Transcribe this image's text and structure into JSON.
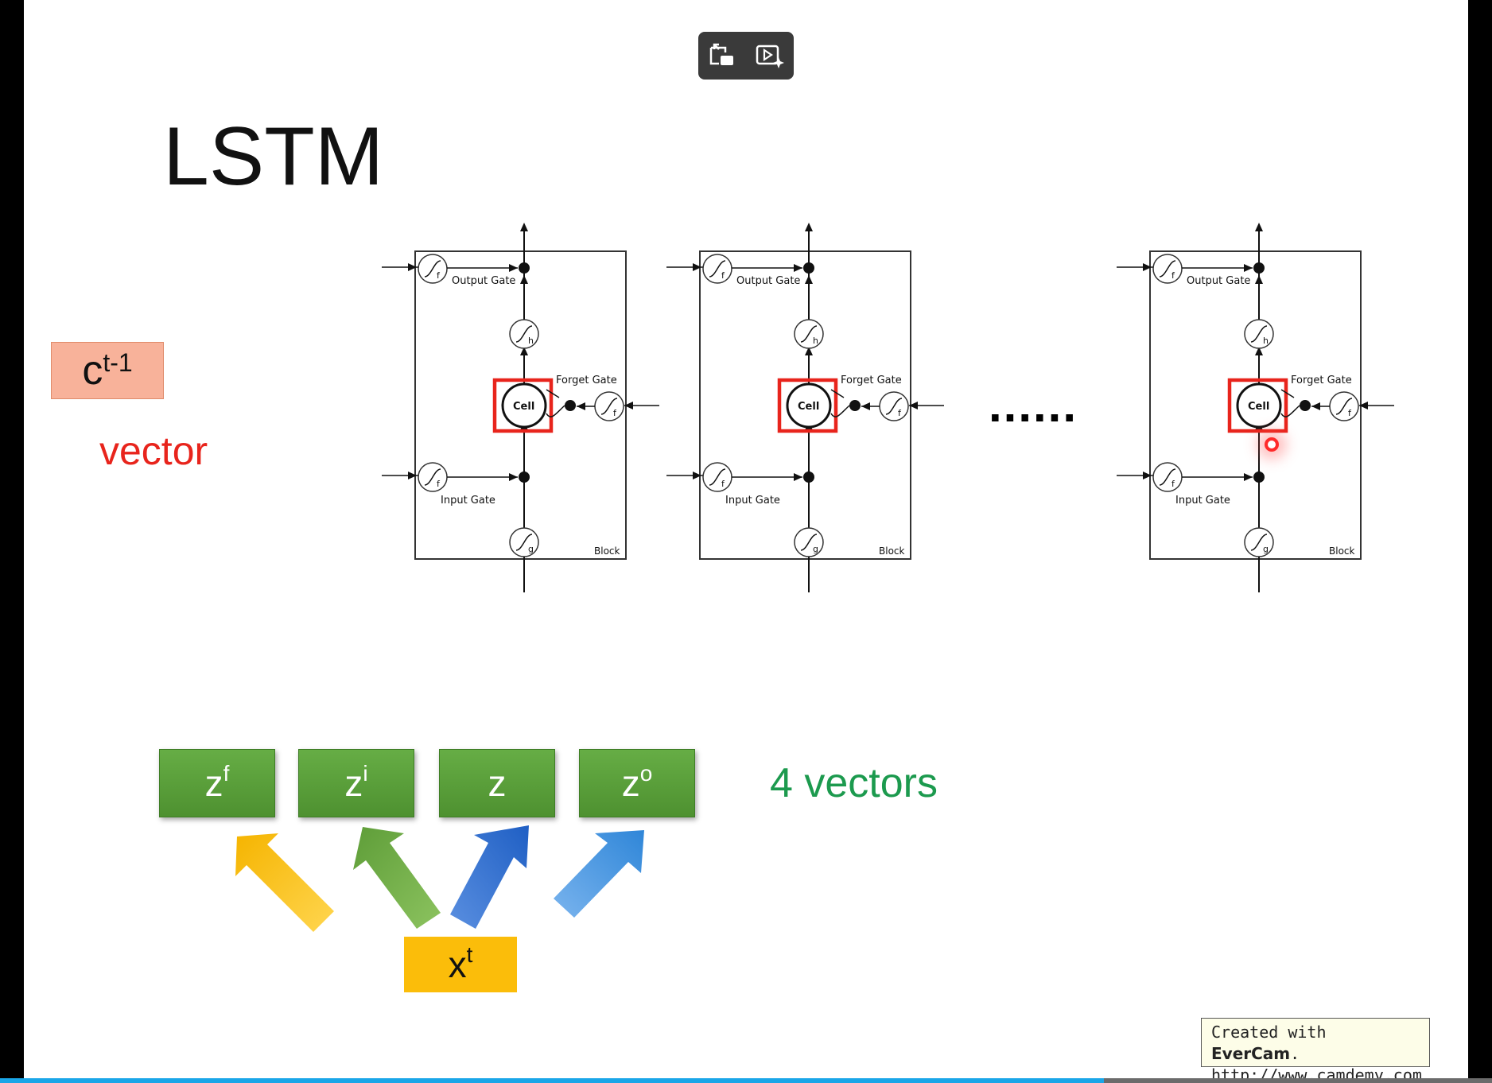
{
  "slide": {
    "title": "LSTM",
    "cell_state_label": {
      "base": "c",
      "sup": "t-1"
    },
    "vector_label": "vector",
    "ellipsis": "......",
    "four_vectors_label": "4 vectors",
    "z_boxes": [
      {
        "base": "z",
        "sup": "f"
      },
      {
        "base": "z",
        "sup": "i"
      },
      {
        "base": "z",
        "sup": ""
      },
      {
        "base": "z",
        "sup": "o"
      }
    ],
    "input_label": {
      "base": "x",
      "sup": "t"
    },
    "lstm_blocks": [
      {
        "output_gate": "Output Gate",
        "forget_gate": "Forget Gate",
        "input_gate": "Input Gate",
        "cell": "Cell",
        "block": "Block",
        "h_label": "h",
        "g_label": "g",
        "f_label": "f"
      },
      {
        "output_gate": "Output Gate",
        "forget_gate": "Forget Gate",
        "input_gate": "Input Gate",
        "cell": "Cell",
        "block": "Block",
        "h_label": "h",
        "g_label": "g",
        "f_label": "f"
      },
      {
        "output_gate": "Output Gate",
        "forget_gate": "Forget Gate",
        "input_gate": "Input Gate",
        "cell": "Cell",
        "block": "Block",
        "h_label": "h",
        "g_label": "g",
        "f_label": "f"
      }
    ]
  },
  "watermark": {
    "line1_prefix": "Created with ",
    "line1_brand": "EverCam",
    "line1_suffix": ".",
    "line2": "http://www.camdemy.com"
  },
  "player": {
    "progress": 0.74,
    "pip_icon": "picture-in-picture-icon",
    "ai_icon": "play-sparkle-icon"
  },
  "colors": {
    "cell_highlight": "#e8241c",
    "z_green": "#5aa03a",
    "four_vectors": "#1c9a4e",
    "vector_red": "#e8241c",
    "xt_yellow": "#fbbd0a",
    "ct_orange": "#f8b29a",
    "progress": "#1aa6e8"
  }
}
